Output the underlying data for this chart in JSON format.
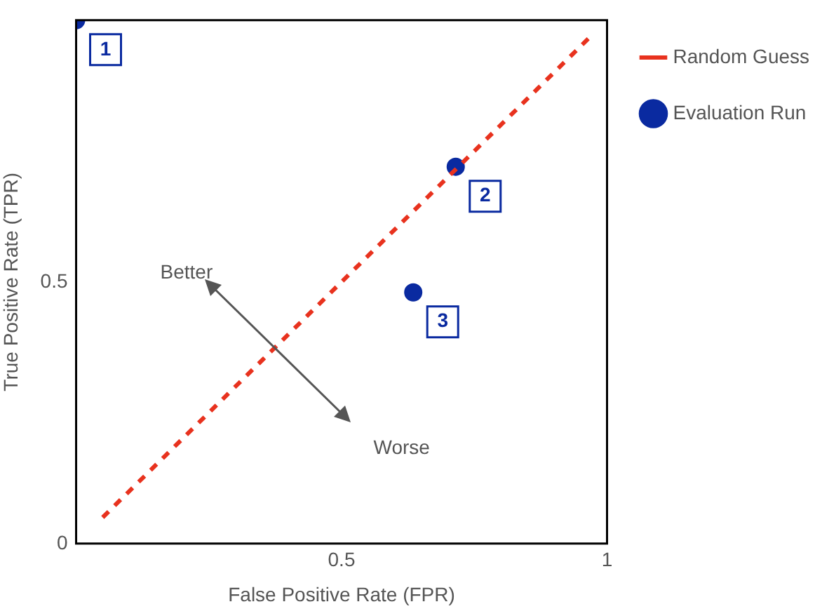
{
  "chart_data": {
    "type": "scatter",
    "xlabel": "False Positive Rate (FPR)",
    "ylabel": "True Positive Rate (TPR)",
    "xlim": [
      0,
      1
    ],
    "ylim": [
      0,
      1
    ],
    "xticks": [
      0.5,
      1
    ],
    "yticks": [
      0,
      0.5
    ],
    "grid": false,
    "legend": "top right",
    "series": [
      {
        "name": "Random Guess",
        "type": "line",
        "color": "#e8321e",
        "line_style": "dashed",
        "marker": "none",
        "x": [
          0.05,
          0.975
        ],
        "values": [
          0.05,
          0.975
        ]
      },
      {
        "name": "Evaluation Run",
        "type": "scatter",
        "color": "#0a2aa0",
        "marker": "circle",
        "x": [
          0,
          0.715,
          0.635
        ],
        "values": [
          1,
          0.72,
          0.48
        ]
      }
    ],
    "annotations": [
      {
        "text": "1",
        "x": 0,
        "y": 1
      },
      {
        "text": "2",
        "x": 0.715,
        "y": 0.72
      },
      {
        "text": "3",
        "x": 0.635,
        "y": 0.48
      },
      "Better",
      "Worse"
    ]
  }
}
